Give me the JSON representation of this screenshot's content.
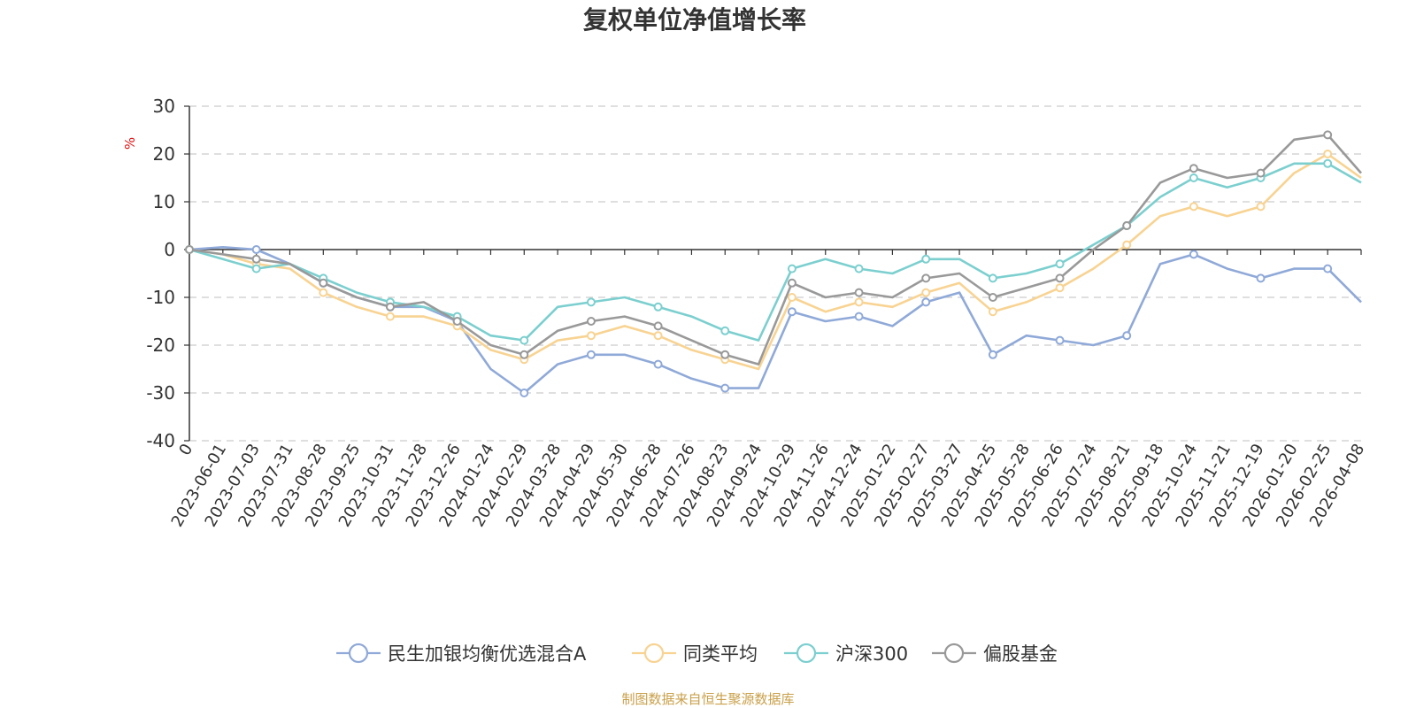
{
  "chart_data": {
    "type": "line",
    "title": "复权单位净值增长率",
    "ylabel": "%",
    "ylim": [
      -40,
      30
    ],
    "yticks": [
      30,
      20,
      10,
      0,
      -10,
      -20,
      -30,
      -40
    ],
    "grid": true,
    "legend_position": "bottom",
    "x_origin_label": "0",
    "categories": [
      "2023-06-01",
      "2023-07-03",
      "2023-07-31",
      "2023-08-28",
      "2023-09-25",
      "2023-10-31",
      "2023-11-28",
      "2023-12-26",
      "2024-01-24",
      "2024-02-29",
      "2024-03-28",
      "2024-04-29",
      "2024-05-30",
      "2024-06-28",
      "2024-07-26",
      "2024-08-23",
      "2024-09-24",
      "2024-10-29",
      "2024-11-26",
      "2024-12-24",
      "2025-01-22",
      "2025-02-27",
      "2025-03-27",
      "2025-04-25",
      "2025-05-28",
      "2025-06-26",
      "2025-07-24",
      "2025-08-21",
      "2025-09-18",
      "2025-10-24",
      "2025-11-21",
      "2025-12-19",
      "2026-01-20",
      "2026-02-25",
      "2026-04-08"
    ],
    "series": [
      {
        "name": "民生加银均衡优选混合A",
        "color": "#8fa9d8",
        "values": [
          0.5,
          0,
          -3,
          -7,
          -10,
          -12,
          -12,
          -15,
          -25,
          -30,
          -24,
          -22,
          -22,
          -24,
          -27,
          -29,
          -29,
          -13,
          -15,
          -14,
          -16,
          -11,
          -9,
          -22,
          -18,
          -19,
          -20,
          -18,
          -3,
          -1,
          -4,
          -6,
          -4,
          -4,
          -11
        ]
      },
      {
        "name": "同类平均",
        "color": "#f8d392",
        "values": [
          -1,
          -3,
          -4,
          -9,
          -12,
          -14,
          -14,
          -16,
          -21,
          -23,
          -19,
          -18,
          -16,
          -18,
          -21,
          -23,
          -25,
          -10,
          -13,
          -11,
          -12,
          -9,
          -7,
          -13,
          -11,
          -8,
          -4,
          1,
          7,
          9,
          7,
          9,
          16,
          20,
          15
        ]
      },
      {
        "name": "沪深300",
        "color": "#7ccfcf",
        "values": [
          -2,
          -4,
          -3,
          -6,
          -9,
          -11,
          -12,
          -14,
          -18,
          -19,
          -12,
          -11,
          -10,
          -12,
          -14,
          -17,
          -19,
          -4,
          -2,
          -4,
          -5,
          -2,
          -2,
          -6,
          -5,
          -3,
          1,
          5,
          11,
          15,
          13,
          15,
          18,
          18,
          14
        ]
      },
      {
        "name": "偏股基金",
        "color": "#999999",
        "values": [
          -1,
          -2,
          -3,
          -7,
          -10,
          -12,
          -11,
          -15,
          -20,
          -22,
          -17,
          -15,
          -14,
          -16,
          -19,
          -22,
          -24,
          -7,
          -10,
          -9,
          -10,
          -6,
          -5,
          -10,
          -8,
          -6,
          0,
          5,
          14,
          17,
          15,
          16,
          23,
          24,
          16
        ]
      }
    ]
  },
  "source": "制图数据来自恒生聚源数据库"
}
